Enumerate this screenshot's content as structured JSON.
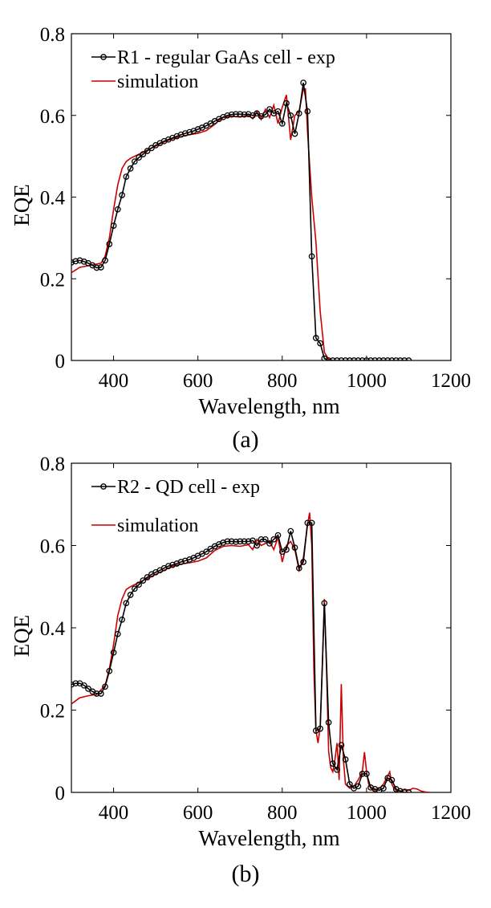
{
  "chart_data": [
    {
      "type": "line",
      "caption": "(a)",
      "xlabel": "Wavelength, nm",
      "ylabel": "EQE",
      "xlim": [
        300,
        1200
      ],
      "ylim": [
        0,
        0.8
      ],
      "xticks": [
        400,
        600,
        800,
        1000,
        1200
      ],
      "xtick_labels": [
        "400",
        "600",
        "800",
        "1000",
        "1200"
      ],
      "yticks": [
        0,
        0.2,
        0.4,
        0.6,
        0.8
      ],
      "ytick_labels": [
        "0",
        "0.2",
        "0.4",
        "0.6",
        "0.8"
      ],
      "legend_position": "top-left",
      "series": [
        {
          "name": "R1 - regular GaAs cell - exp",
          "color": "#000000",
          "marker": "circle",
          "x": [
            300,
            310,
            320,
            330,
            340,
            350,
            360,
            370,
            380,
            390,
            400,
            410,
            420,
            430,
            440,
            450,
            460,
            470,
            480,
            490,
            500,
            510,
            520,
            530,
            540,
            550,
            560,
            570,
            580,
            590,
            600,
            610,
            620,
            630,
            640,
            650,
            660,
            670,
            680,
            690,
            700,
            710,
            720,
            730,
            740,
            750,
            760,
            770,
            780,
            790,
            800,
            810,
            820,
            830,
            840,
            850,
            860,
            870,
            880,
            890,
            900,
            910,
            920,
            930,
            940,
            950,
            960,
            970,
            980,
            990,
            1000,
            1010,
            1020,
            1030,
            1040,
            1050,
            1060,
            1070,
            1080,
            1090,
            1100
          ],
          "y": [
            0.24,
            0.243,
            0.245,
            0.242,
            0.238,
            0.233,
            0.227,
            0.228,
            0.245,
            0.285,
            0.33,
            0.37,
            0.405,
            0.45,
            0.47,
            0.487,
            0.497,
            0.505,
            0.513,
            0.52,
            0.527,
            0.532,
            0.537,
            0.541,
            0.545,
            0.549,
            0.553,
            0.556,
            0.559,
            0.562,
            0.566,
            0.57,
            0.575,
            0.58,
            0.586,
            0.591,
            0.596,
            0.6,
            0.602,
            0.603,
            0.603,
            0.602,
            0.603,
            0.6,
            0.605,
            0.598,
            0.602,
            0.615,
            0.605,
            0.61,
            0.58,
            0.63,
            0.6,
            0.555,
            0.605,
            0.68,
            0.61,
            0.255,
            0.055,
            0.042,
            0.005,
            0,
            0,
            0,
            0,
            0,
            0,
            0,
            0,
            0,
            0,
            0,
            0,
            0,
            0,
            0,
            0,
            0,
            0,
            0,
            0
          ]
        },
        {
          "name": "simulation",
          "color": "#cc0000",
          "marker": "none",
          "x": [
            300,
            320,
            340,
            360,
            370,
            380,
            390,
            400,
            410,
            420,
            430,
            440,
            460,
            480,
            500,
            520,
            540,
            560,
            580,
            600,
            620,
            640,
            650,
            660,
            680,
            700,
            720,
            730,
            740,
            750,
            760,
            770,
            780,
            790,
            800,
            810,
            820,
            830,
            840,
            850,
            855,
            860,
            870,
            880,
            890,
            900,
            910,
            920
          ],
          "y": [
            0.215,
            0.228,
            0.232,
            0.236,
            0.238,
            0.255,
            0.3,
            0.37,
            0.43,
            0.47,
            0.487,
            0.495,
            0.505,
            0.515,
            0.525,
            0.535,
            0.543,
            0.548,
            0.553,
            0.556,
            0.563,
            0.578,
            0.588,
            0.595,
            0.598,
            0.596,
            0.6,
            0.592,
            0.61,
            0.59,
            0.615,
            0.595,
            0.625,
            0.58,
            0.62,
            0.65,
            0.54,
            0.6,
            0.61,
            0.665,
            0.665,
            0.56,
            0.4,
            0.29,
            0.12,
            0.02,
            0.003,
            0
          ]
        }
      ]
    },
    {
      "type": "line",
      "caption": "(b)",
      "xlabel": "Wavelength, nm",
      "ylabel": "EQE",
      "xlim": [
        300,
        1200
      ],
      "ylim": [
        0,
        0.8
      ],
      "xticks": [
        400,
        600,
        800,
        1000,
        1200
      ],
      "xtick_labels": [
        "400",
        "600",
        "800",
        "1000",
        "1200"
      ],
      "yticks": [
        0,
        0.2,
        0.4,
        0.6,
        0.8
      ],
      "ytick_labels": [
        "0",
        "0.2",
        "0.4",
        "0.6",
        "0.8"
      ],
      "legend_position": "top-left",
      "series": [
        {
          "name": "R2 - QD cell - exp",
          "color": "#000000",
          "marker": "circle",
          "x": [
            300,
            310,
            320,
            330,
            340,
            350,
            360,
            370,
            380,
            390,
            400,
            410,
            420,
            430,
            440,
            450,
            460,
            470,
            480,
            490,
            500,
            510,
            520,
            530,
            540,
            550,
            560,
            570,
            580,
            590,
            600,
            610,
            620,
            630,
            640,
            650,
            660,
            670,
            680,
            690,
            700,
            710,
            720,
            730,
            740,
            750,
            760,
            770,
            780,
            790,
            800,
            810,
            820,
            830,
            840,
            850,
            860,
            870,
            880,
            890,
            900,
            910,
            920,
            930,
            940,
            950,
            960,
            970,
            980,
            990,
            1000,
            1010,
            1020,
            1030,
            1040,
            1050,
            1060,
            1070,
            1080,
            1090,
            1100
          ],
          "y": [
            0.262,
            0.265,
            0.265,
            0.26,
            0.252,
            0.245,
            0.24,
            0.24,
            0.257,
            0.295,
            0.34,
            0.385,
            0.42,
            0.46,
            0.48,
            0.495,
            0.505,
            0.515,
            0.523,
            0.53,
            0.535,
            0.54,
            0.545,
            0.55,
            0.553,
            0.556,
            0.56,
            0.563,
            0.566,
            0.57,
            0.575,
            0.58,
            0.585,
            0.592,
            0.598,
            0.603,
            0.607,
            0.61,
            0.61,
            0.609,
            0.61,
            0.61,
            0.61,
            0.612,
            0.6,
            0.615,
            0.615,
            0.605,
            0.615,
            0.625,
            0.585,
            0.59,
            0.635,
            0.595,
            0.545,
            0.56,
            0.655,
            0.655,
            0.15,
            0.155,
            0.46,
            0.17,
            0.07,
            0.055,
            0.115,
            0.08,
            0.02,
            0.01,
            0.015,
            0.045,
            0.045,
            0.012,
            0.008,
            0.005,
            0.01,
            0.035,
            0.03,
            0.008,
            0.003,
            0,
            0
          ]
        },
        {
          "name": "simulation",
          "color": "#cc0000",
          "marker": "none",
          "x": [
            300,
            320,
            340,
            360,
            380,
            390,
            400,
            410,
            420,
            430,
            440,
            460,
            480,
            500,
            520,
            540,
            560,
            580,
            600,
            620,
            640,
            660,
            680,
            700,
            720,
            730,
            740,
            750,
            760,
            770,
            780,
            790,
            800,
            810,
            820,
            830,
            840,
            850,
            860,
            865,
            870,
            875,
            880,
            885,
            890,
            895,
            900,
            905,
            910,
            915,
            920,
            925,
            930,
            935,
            940,
            945,
            950,
            960,
            970,
            980,
            990,
            995,
            1000,
            1005,
            1010,
            1020,
            1030,
            1040,
            1050,
            1055,
            1060,
            1065,
            1070,
            1080,
            1090,
            1100,
            1110,
            1120,
            1130,
            1140,
            1150
          ],
          "y": [
            0.215,
            0.23,
            0.235,
            0.238,
            0.26,
            0.3,
            0.36,
            0.43,
            0.47,
            0.493,
            0.5,
            0.51,
            0.52,
            0.53,
            0.54,
            0.55,
            0.555,
            0.558,
            0.562,
            0.57,
            0.588,
            0.598,
            0.6,
            0.598,
            0.602,
            0.59,
            0.615,
            0.6,
            0.605,
            0.61,
            0.59,
            0.62,
            0.56,
            0.6,
            0.61,
            0.59,
            0.54,
            0.57,
            0.65,
            0.68,
            0.6,
            0.3,
            0.15,
            0.12,
            0.16,
            0.3,
            0.47,
            0.3,
            0.1,
            0.06,
            0.05,
            0.08,
            0.12,
            0.03,
            0.263,
            0.08,
            0.02,
            0.01,
            0.015,
            0.03,
            0.05,
            0.098,
            0.05,
            0.02,
            0.01,
            0.005,
            0.01,
            0.02,
            0.04,
            0.05,
            0.02,
            0.01,
            0.005,
            0.003,
            0.008,
            0.005,
            0.01,
            0.008,
            0.003,
            0.001,
            0
          ]
        }
      ]
    }
  ]
}
